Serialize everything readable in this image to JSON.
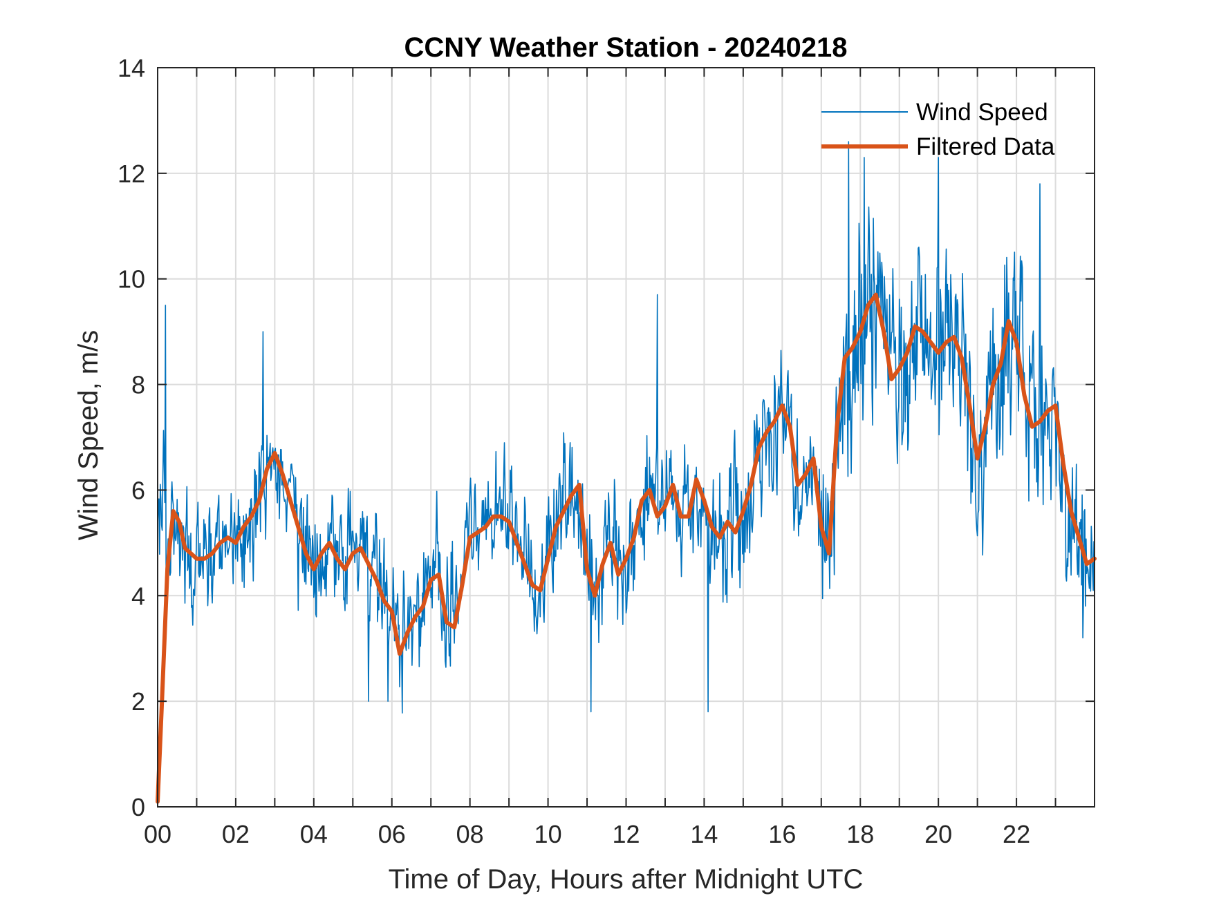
{
  "chart_data": {
    "type": "line",
    "title": "CCNY Weather Station - 20240218",
    "xlabel": "Time of Day, Hours after Midnight UTC",
    "ylabel": "Wind Speed, m/s",
    "xlim": [
      0,
      24
    ],
    "ylim": [
      0,
      14
    ],
    "x_ticks": [
      0,
      2,
      4,
      6,
      8,
      10,
      12,
      14,
      16,
      18,
      20,
      22
    ],
    "x_tick_labels": [
      "00",
      "02",
      "04",
      "06",
      "08",
      "10",
      "12",
      "14",
      "16",
      "18",
      "20",
      "22"
    ],
    "x_minor_grid_step_hours": 1,
    "y_ticks": [
      0,
      2,
      4,
      6,
      8,
      10,
      12,
      14
    ],
    "y_tick_labels": [
      "0",
      "2",
      "4",
      "6",
      "8",
      "10",
      "12",
      "14"
    ],
    "grid": true,
    "legend": {
      "position": "top-right",
      "entries": [
        "Wind Speed",
        "Filtered Data"
      ]
    },
    "series": [
      {
        "name": "Wind Speed",
        "color": "#0072BD",
        "style": "thin",
        "description": "raw noisy 1-min wind speed, oscillating about the filtered curve",
        "notable_points": [
          {
            "x": 0.2,
            "y": 9.5
          },
          {
            "x": 2.7,
            "y": 9.0
          },
          {
            "x": 5.4,
            "y": 2.0
          },
          {
            "x": 5.9,
            "y": 2.0
          },
          {
            "x": 11.1,
            "y": 1.8
          },
          {
            "x": 12.8,
            "y": 9.7
          },
          {
            "x": 14.1,
            "y": 1.8
          },
          {
            "x": 17.7,
            "y": 12.6
          },
          {
            "x": 18.1,
            "y": 12.3
          },
          {
            "x": 20.0,
            "y": 12.3
          },
          {
            "x": 22.6,
            "y": 11.8
          },
          {
            "x": 23.7,
            "y": 3.2
          }
        ]
      },
      {
        "name": "Filtered Data",
        "color": "#D95319",
        "style": "thick",
        "x": [
          0.0,
          0.1,
          0.25,
          0.4,
          0.55,
          0.7,
          0.85,
          1.0,
          1.2,
          1.4,
          1.6,
          1.8,
          2.0,
          2.2,
          2.4,
          2.6,
          2.8,
          3.0,
          3.2,
          3.4,
          3.6,
          3.8,
          4.0,
          4.2,
          4.4,
          4.6,
          4.8,
          5.0,
          5.2,
          5.4,
          5.6,
          5.8,
          6.0,
          6.2,
          6.4,
          6.6,
          6.8,
          7.0,
          7.2,
          7.4,
          7.6,
          7.8,
          8.0,
          8.2,
          8.4,
          8.6,
          8.8,
          9.0,
          9.2,
          9.4,
          9.6,
          9.8,
          10.0,
          10.2,
          10.4,
          10.6,
          10.8,
          11.0,
          11.2,
          11.4,
          11.6,
          11.8,
          12.0,
          12.2,
          12.4,
          12.6,
          12.8,
          13.0,
          13.2,
          13.4,
          13.6,
          13.8,
          14.0,
          14.2,
          14.4,
          14.6,
          14.8,
          15.0,
          15.2,
          15.4,
          15.6,
          15.8,
          16.0,
          16.2,
          16.4,
          16.6,
          16.8,
          17.0,
          17.2,
          17.4,
          17.6,
          17.8,
          18.0,
          18.2,
          18.4,
          18.6,
          18.8,
          19.0,
          19.2,
          19.4,
          19.6,
          19.8,
          20.0,
          20.2,
          20.4,
          20.6,
          20.8,
          21.0,
          21.2,
          21.4,
          21.6,
          21.8,
          22.0,
          22.2,
          22.4,
          22.6,
          22.8,
          23.0,
          23.2,
          23.4,
          23.6,
          23.8,
          24.0
        ],
        "y": [
          0.1,
          1.8,
          4.5,
          5.6,
          5.4,
          4.9,
          4.8,
          4.7,
          4.7,
          4.8,
          5.0,
          5.1,
          5.0,
          5.3,
          5.5,
          5.8,
          6.4,
          6.7,
          6.3,
          5.8,
          5.3,
          4.8,
          4.5,
          4.8,
          5.0,
          4.7,
          4.5,
          4.8,
          4.9,
          4.6,
          4.3,
          3.9,
          3.7,
          2.9,
          3.3,
          3.6,
          3.8,
          4.3,
          4.4,
          3.5,
          3.4,
          4.2,
          5.1,
          5.2,
          5.3,
          5.5,
          5.5,
          5.4,
          5.0,
          4.6,
          4.2,
          4.1,
          4.7,
          5.3,
          5.6,
          5.9,
          6.1,
          4.5,
          4.0,
          4.6,
          5.0,
          4.4,
          4.7,
          5.1,
          5.8,
          6.0,
          5.5,
          5.7,
          6.1,
          5.5,
          5.5,
          6.2,
          5.8,
          5.3,
          5.1,
          5.4,
          5.2,
          5.6,
          6.1,
          6.8,
          7.1,
          7.3,
          7.6,
          7.2,
          6.1,
          6.3,
          6.6,
          5.3,
          4.8,
          7.2,
          8.5,
          8.7,
          9.0,
          9.5,
          9.7,
          9.0,
          8.1,
          8.3,
          8.6,
          9.1,
          9.0,
          8.8,
          8.6,
          8.8,
          8.9,
          8.5,
          7.6,
          6.6,
          7.2,
          8.0,
          8.4,
          9.2,
          8.8,
          7.8,
          7.2,
          7.3,
          7.5,
          7.6,
          6.5,
          5.6,
          5.1,
          4.6,
          4.7
        ]
      }
    ]
  }
}
